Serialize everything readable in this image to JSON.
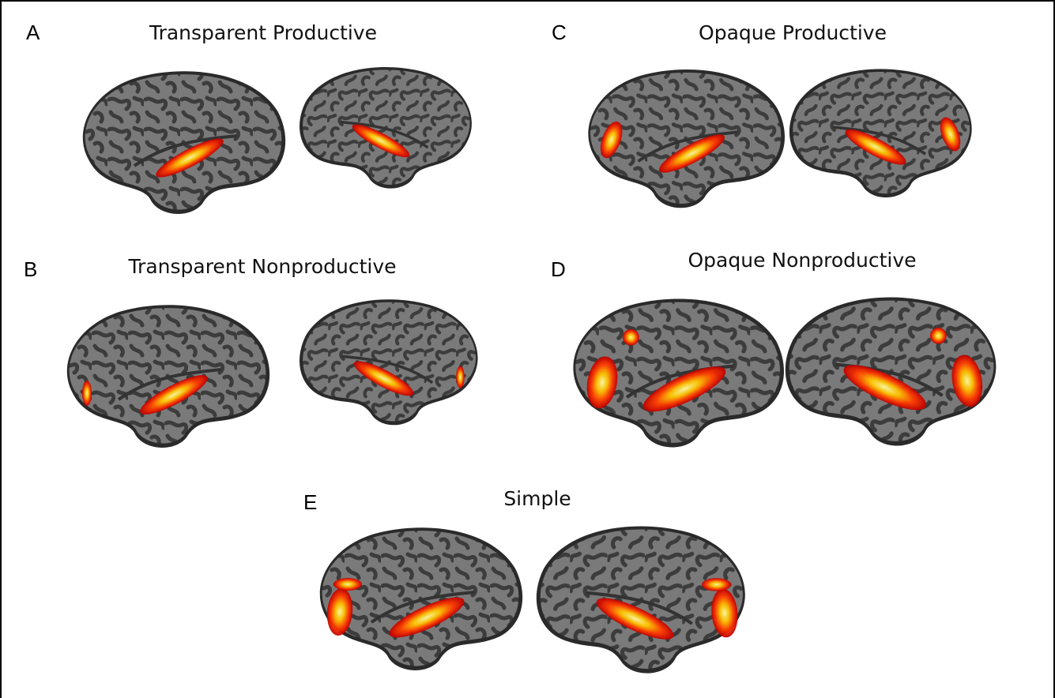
{
  "panels": [
    {
      "letter": "A",
      "title": "Transparent Productive"
    },
    {
      "letter": "B",
      "title": "Transparent Nonproductive"
    },
    {
      "letter": "C",
      "title": "Opaque Productive"
    },
    {
      "letter": "D",
      "title": "Opaque Nonproductive"
    },
    {
      "letter": "E",
      "title": "Simple"
    }
  ]
}
